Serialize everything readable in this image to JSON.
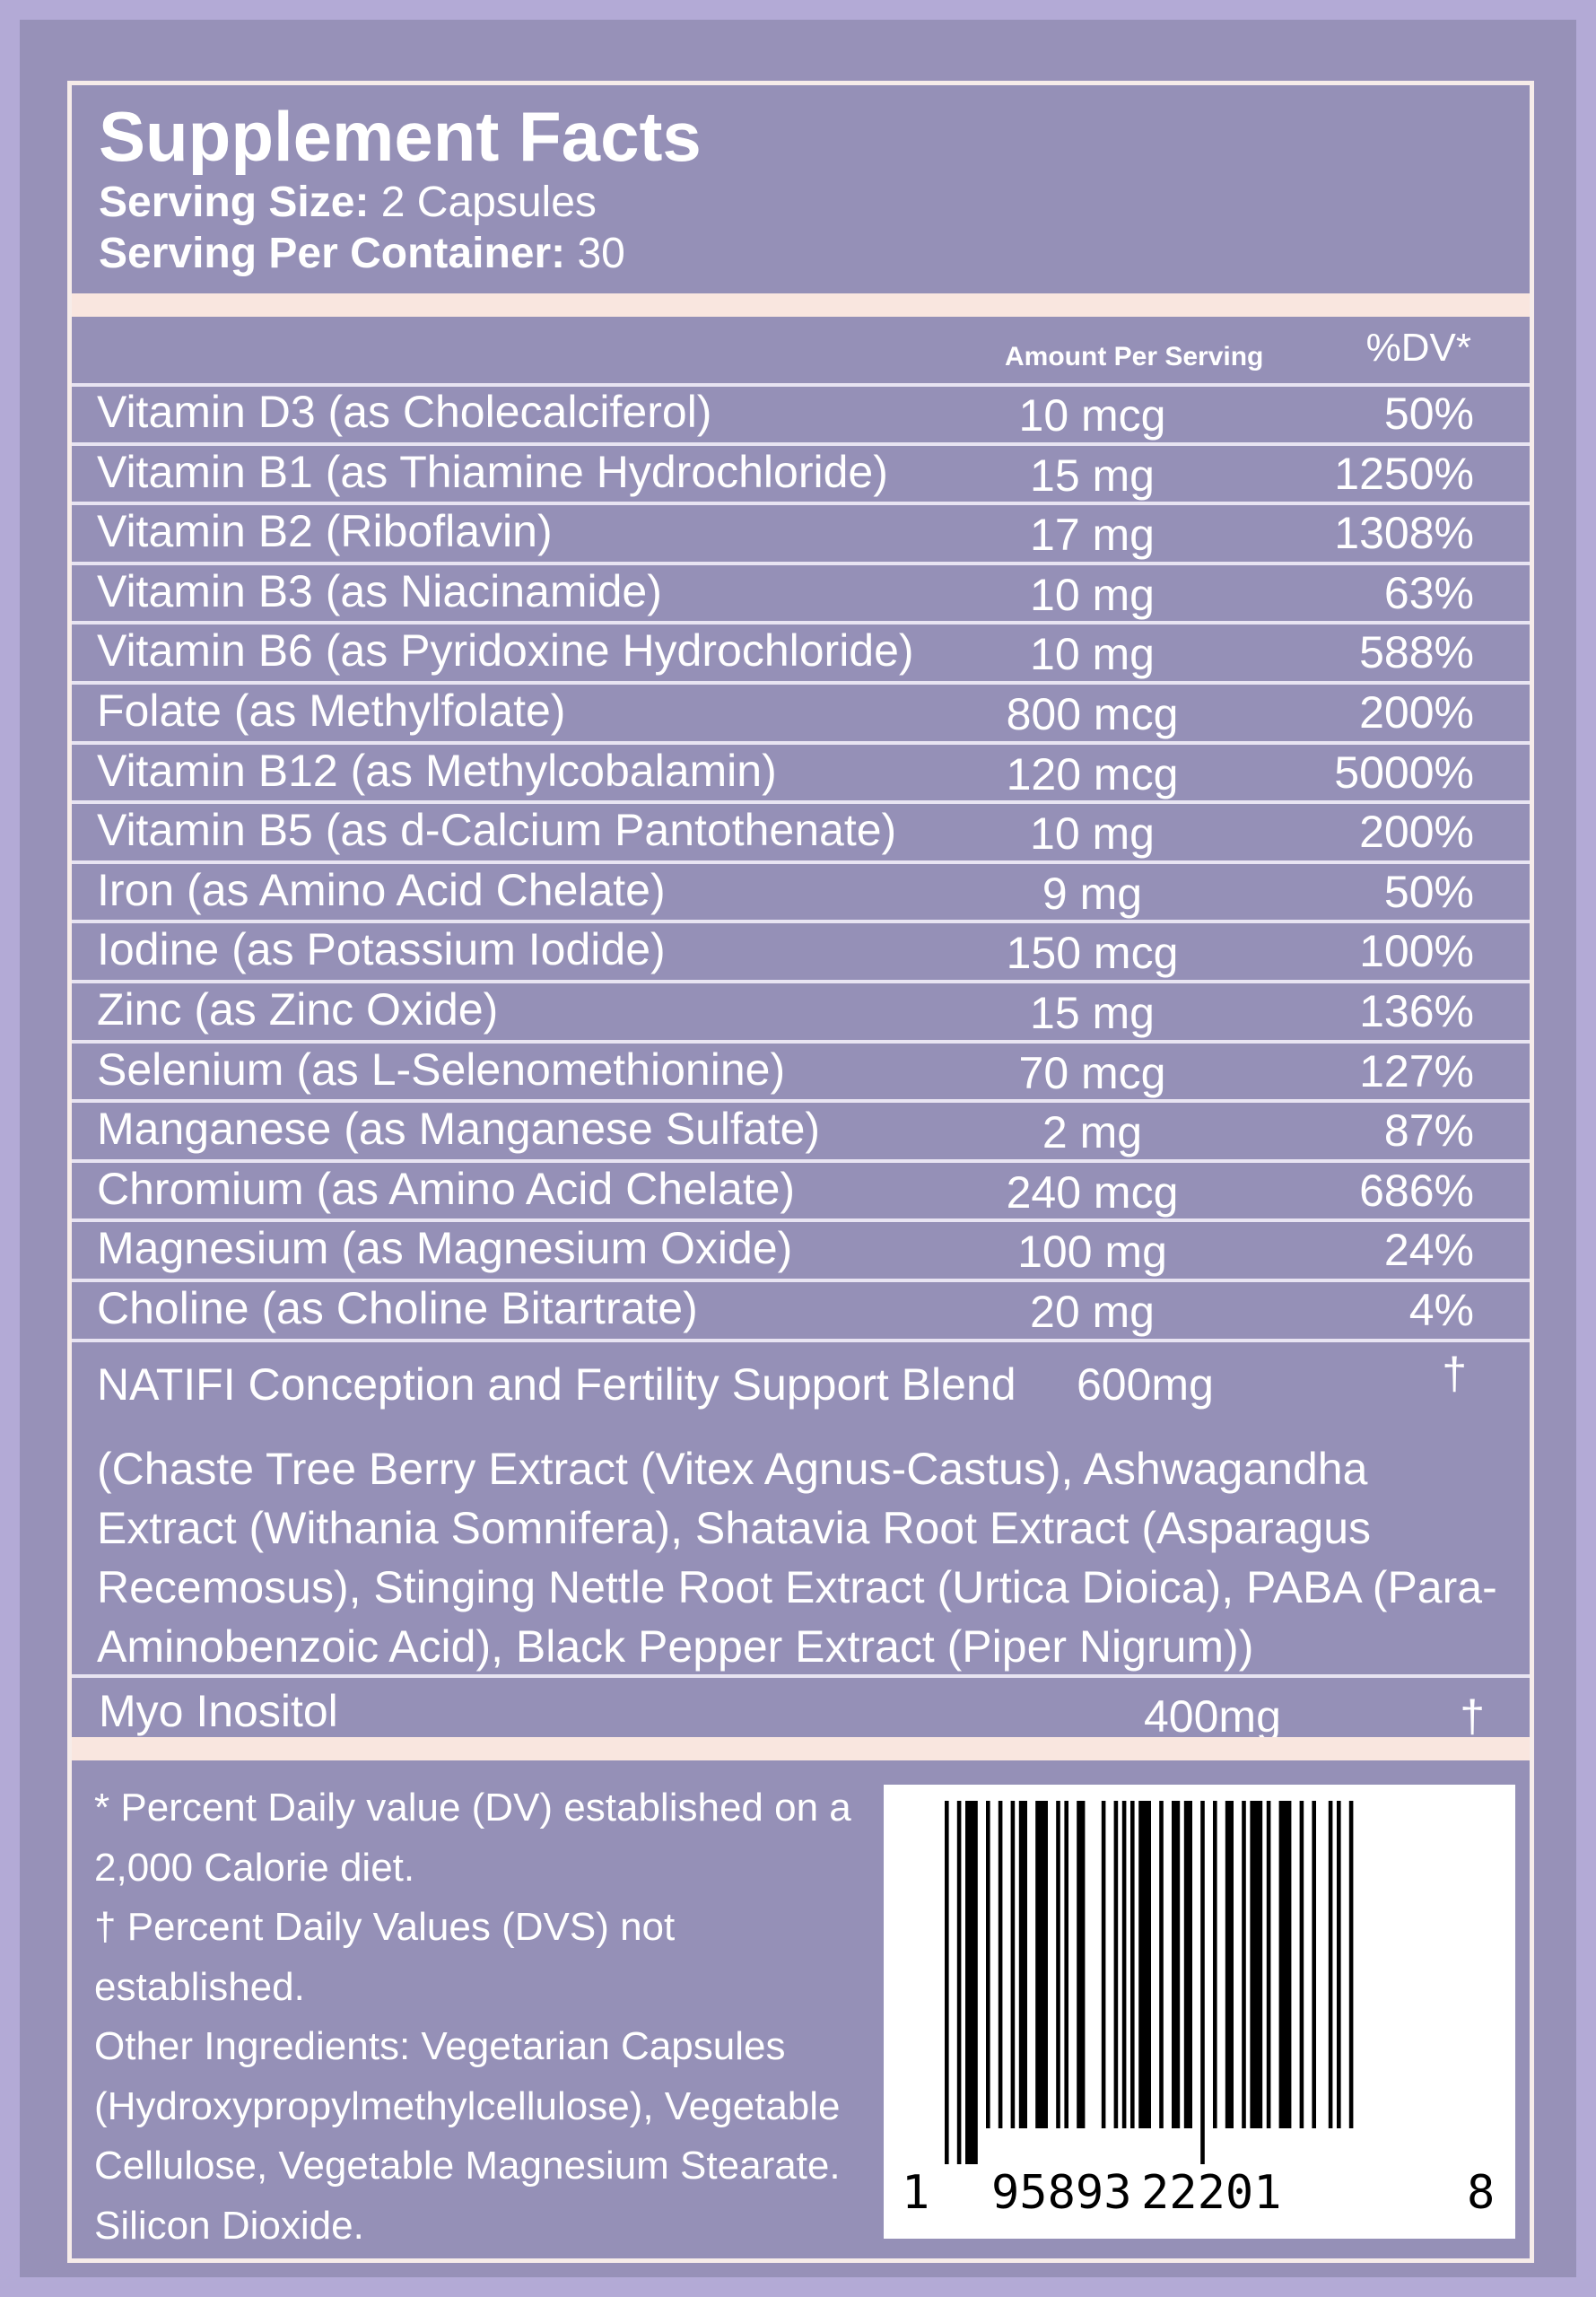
{
  "header": {
    "title": "Supplement Facts",
    "serving_size_label": "Serving Size:",
    "serving_size_value": " 2 Capsules",
    "servings_label": "Serving Per Container:",
    "servings_value": " 30"
  },
  "columns": {
    "amount": "Amount Per Serving",
    "dv": "%DV*"
  },
  "nutrients": [
    {
      "name": "Vitamin D3 (as Cholecalciferol)",
      "amount": "10 mcg",
      "dv": "50%"
    },
    {
      "name": "Vitamin B1 (as Thiamine Hydrochloride)",
      "amount": "15 mg",
      "dv": "1250%"
    },
    {
      "name": "Vitamin B2 (Riboflavin)",
      "amount": "17 mg",
      "dv": "1308%"
    },
    {
      "name": "Vitamin B3 (as Niacinamide)",
      "amount": "10 mg",
      "dv": "63%"
    },
    {
      "name": "Vitamin B6 (as Pyridoxine Hydrochloride)",
      "amount": "10 mg",
      "dv": "588%"
    },
    {
      "name": "Folate (as Methylfolate)",
      "amount": "800 mcg",
      "dv": "200%"
    },
    {
      "name": "Vitamin B12 (as Methylcobalamin)",
      "amount": "120 mcg",
      "dv": "5000%"
    },
    {
      "name": "Vitamin B5 (as d-Calcium Pantothenate)",
      "amount": "10 mg",
      "dv": "200%"
    },
    {
      "name": "Iron (as Amino Acid Chelate)",
      "amount": "9 mg",
      "dv": "50%"
    },
    {
      "name": "Iodine (as Potassium Iodide)",
      "amount": "150 mcg",
      "dv": "100%"
    },
    {
      "name": "Zinc (as Zinc Oxide)",
      "amount": "15 mg",
      "dv": "136%"
    },
    {
      "name": "Selenium (as L-Selenomethionine)",
      "amount": "70 mcg",
      "dv": "127%"
    },
    {
      "name": "Manganese (as Manganese Sulfate)",
      "amount": "2 mg",
      "dv": "87%"
    },
    {
      "name": "Chromium (as Amino Acid Chelate)",
      "amount": "240 mcg",
      "dv": "686%"
    },
    {
      "name": "Magnesium (as Magnesium Oxide)",
      "amount": "100 mg",
      "dv": "24%"
    },
    {
      "name": "Choline (as Choline Bitartrate)",
      "amount": "20 mg",
      "dv": "4%"
    }
  ],
  "blend": {
    "name": "NATIFI Conception and Fertility Support Blend",
    "amount": "600mg",
    "dv": "†",
    "ingredients": "(Chaste Tree Berry Extract (Vitex Agnus-Castus), Ashwagandha Extract (Withania Somnifera), Shatavia Root Extract (Asparagus Recemosus), Stinging Nettle Root Extract (Urtica Dioica), PABA (Para-Aminobenzoic Acid), Black Pepper Extract (Piper Nigrum))"
  },
  "myo": {
    "name": "Myo Inositol",
    "amount": "400mg",
    "dv": "†"
  },
  "footer": {
    "dv_note": "* Percent Daily value (DV) established on a 2,000 Calorie diet.",
    "dagger_note": "† Percent Daily Values (DVS) not established.",
    "other": "Other Ingredients: Vegetarian Capsules (Hydroxypropylmethylcellulose), Vegetable Cellulose, Vegetable Magnesium Stearate. Silicon Dioxide."
  },
  "barcode": {
    "d1": "1",
    "d2": "95893",
    "d3": "22201",
    "d4": "8"
  },
  "colors": {
    "background": "#9590b7",
    "border": "#b3aad6",
    "separator": "#f9e6df"
  }
}
